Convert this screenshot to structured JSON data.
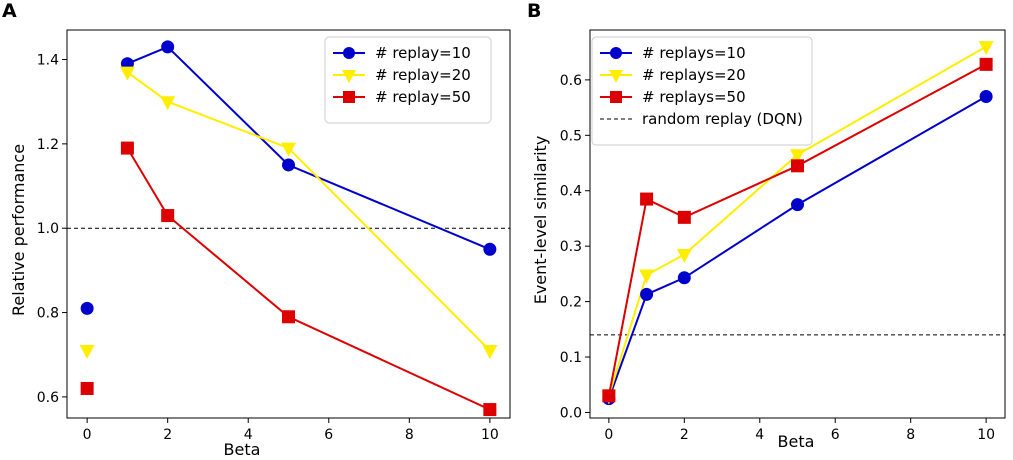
{
  "chart_data": [
    {
      "panel": "A",
      "type": "line",
      "xlabel": "Beta",
      "ylabel": "Relative performance",
      "xlim": [
        -0.5,
        10.5
      ],
      "ylim": [
        0.55,
        1.47
      ],
      "xticks": [
        0,
        2,
        4,
        6,
        8,
        10
      ],
      "yticks": [
        0.6,
        0.8,
        1.0,
        1.2,
        1.4
      ],
      "reference_line": {
        "y": 1.0,
        "style": "dashed",
        "color": "#000000"
      },
      "legend_position": "top-right",
      "series": [
        {
          "name": "# replay=10",
          "color": "#0000cc",
          "marker": "circle",
          "points": [
            [
              0,
              0.81
            ],
            [
              1,
              1.39
            ],
            [
              2,
              1.43
            ],
            [
              5,
              1.15
            ],
            [
              10,
              0.95
            ]
          ],
          "line_from_x": 1
        },
        {
          "name": "# replay=20",
          "color": "#ffee00",
          "marker": "triangle-down",
          "points": [
            [
              0,
              0.71
            ],
            [
              1,
              1.37
            ],
            [
              2,
              1.3
            ],
            [
              5,
              1.19
            ],
            [
              10,
              0.71
            ]
          ],
          "line_from_x": 1
        },
        {
          "name": "# replay=50",
          "color": "#dd0000",
          "marker": "square",
          "points": [
            [
              0,
              0.62
            ],
            [
              1,
              1.19
            ],
            [
              2,
              1.03
            ],
            [
              5,
              0.79
            ],
            [
              10,
              0.57
            ]
          ],
          "line_from_x": 1
        }
      ]
    },
    {
      "panel": "B",
      "type": "line",
      "xlabel": "Beta",
      "ylabel": "Event-level similarity",
      "xlim": [
        -0.5,
        10.5
      ],
      "ylim": [
        -0.01,
        0.69
      ],
      "xticks": [
        0,
        2,
        4,
        6,
        8,
        10
      ],
      "yticks": [
        0.0,
        0.1,
        0.2,
        0.3,
        0.4,
        0.5,
        0.6
      ],
      "reference_line": {
        "y": 0.14,
        "style": "dashed",
        "color": "#000000",
        "label": "random replay (DQN)"
      },
      "legend_position": "top-left",
      "series": [
        {
          "name": "# replays=10",
          "color": "#0000cc",
          "marker": "circle",
          "points": [
            [
              0,
              0.025
            ],
            [
              1,
              0.213
            ],
            [
              2,
              0.243
            ],
            [
              5,
              0.375
            ],
            [
              10,
              0.57
            ]
          ],
          "line_from_x": 0
        },
        {
          "name": "# replays=20",
          "color": "#ffee00",
          "marker": "triangle-down",
          "points": [
            [
              0,
              0.03
            ],
            [
              1,
              0.248
            ],
            [
              2,
              0.285
            ],
            [
              5,
              0.465
            ],
            [
              10,
              0.66
            ]
          ],
          "line_from_x": 0
        },
        {
          "name": "# replays=50",
          "color": "#dd0000",
          "marker": "square",
          "points": [
            [
              0,
              0.03
            ],
            [
              1,
              0.385
            ],
            [
              2,
              0.352
            ],
            [
              5,
              0.445
            ],
            [
              10,
              0.628
            ]
          ],
          "line_from_x": 0
        }
      ]
    }
  ]
}
